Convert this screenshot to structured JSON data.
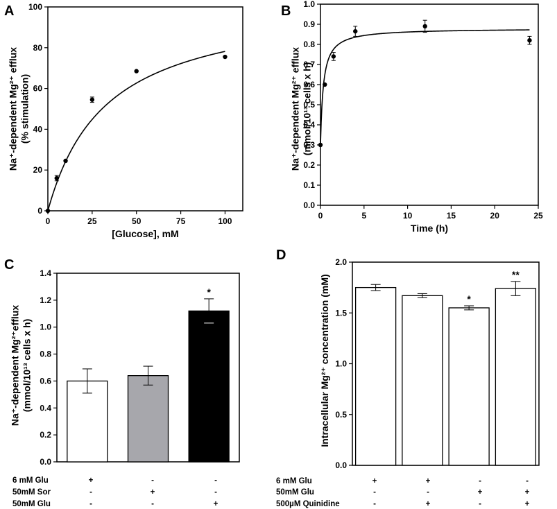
{
  "chart_data": [
    {
      "panel": "A",
      "type": "scatter",
      "x": [
        0,
        5,
        10,
        25,
        50,
        100
      ],
      "y": [
        0,
        16,
        24.5,
        54.5,
        68.5,
        75.5
      ],
      "yerr": [
        0,
        1.3,
        0,
        1.3,
        0,
        0
      ],
      "fit": {
        "model": "michaelis-menten",
        "vmax": 104,
        "km": 33
      },
      "xlabel": "[Glucose], mM",
      "ylabel_lines": [
        "Na⁺-dependent Mg²⁺ efflux",
        "(% stimulation)"
      ],
      "xlim": [
        0,
        110
      ],
      "ylim": [
        0,
        100
      ],
      "xticks": [
        0,
        25,
        50,
        75,
        100
      ],
      "yticks": [
        0,
        20,
        40,
        60,
        80,
        100
      ],
      "xticklabels": [
        "0",
        "25",
        "50",
        "75",
        "100"
      ],
      "yticklabels": [
        "0",
        "20",
        "40",
        "60",
        "80",
        "100"
      ]
    },
    {
      "panel": "B",
      "type": "scatter",
      "x": [
        0,
        0.5,
        1.5,
        4,
        12,
        24
      ],
      "y": [
        0.3,
        0.6,
        0.74,
        0.865,
        0.89,
        0.82
      ],
      "yerr": [
        0,
        0,
        0.02,
        0.025,
        0.03,
        0.02
      ],
      "fit": {
        "model": "saturation",
        "y0": 0.3,
        "ymax": 0.88,
        "k": 0.33
      },
      "xlabel": "Time (h)",
      "ylabel_lines": [
        "Na⁺-dependent Mg²⁺ efflux",
        "(mmol/10¹³ cells x h)"
      ],
      "xlim": [
        0,
        25
      ],
      "ylim": [
        0,
        1.0
      ],
      "xticks": [
        0,
        5,
        10,
        15,
        20,
        25
      ],
      "yticks": [
        0,
        0.1,
        0.2,
        0.3,
        0.4,
        0.5,
        0.6,
        0.7,
        0.8,
        0.9,
        1.0
      ],
      "xticklabels": [
        "0",
        "5",
        "10",
        "15",
        "20",
        "25"
      ],
      "yticklabels": [
        "0.0",
        "0.1",
        "0.2",
        "0.3",
        "0.4",
        "0.5",
        "0.6",
        "0.7",
        "0.8",
        "0.9",
        "1.0"
      ]
    },
    {
      "panel": "C",
      "type": "bar",
      "values": [
        0.6,
        0.64,
        1.12
      ],
      "errors": [
        0.09,
        0.07,
        0.09
      ],
      "colors": [
        "#ffffff",
        "#a7a7ac",
        "#000000"
      ],
      "annotations": [
        "",
        "",
        "*"
      ],
      "ylabel_lines": [
        "Na⁺-dependent Mg²⁺efflux",
        "(mmol/10¹³ cells x h)"
      ],
      "ylim": [
        0,
        1.4
      ],
      "yticks": [
        0,
        0.2,
        0.4,
        0.6,
        0.8,
        1.0,
        1.2,
        1.4
      ],
      "yticklabels": [
        "0.0",
        "0.2",
        "0.4",
        "0.6",
        "0.8",
        "1.0",
        "1.2",
        "1.4"
      ],
      "conditions": [
        {
          "label": "6 mM Glu",
          "marks": [
            "+",
            "-",
            "-"
          ]
        },
        {
          "label": "50mM Sor",
          "marks": [
            "-",
            "+",
            "-"
          ]
        },
        {
          "label": "50mM Glu",
          "marks": [
            "-",
            "-",
            "+"
          ]
        }
      ]
    },
    {
      "panel": "D",
      "type": "bar",
      "values": [
        1.75,
        1.67,
        1.55,
        1.74
      ],
      "errors": [
        0.03,
        0.02,
        0.02,
        0.07
      ],
      "colors": [
        "#ffffff",
        "#ffffff",
        "#ffffff",
        "#ffffff"
      ],
      "annotations": [
        "",
        "",
        "*",
        "**"
      ],
      "ylabel_lines": [
        "Intracellular Mg²⁺ concentration (mM)"
      ],
      "ylim": [
        0,
        2.0
      ],
      "yticks": [
        0,
        0.5,
        1.0,
        1.5,
        2.0
      ],
      "yticklabels": [
        "0.0",
        "0.5",
        "1.0",
        "1.5",
        "2.0"
      ],
      "conditions": [
        {
          "label": "6 mM Glu",
          "marks": [
            "+",
            "+",
            "-",
            "-"
          ]
        },
        {
          "label": "50mM Glu",
          "marks": [
            "-",
            "-",
            "+",
            "+"
          ]
        },
        {
          "label": "500µM Quinidine",
          "marks": [
            "-",
            "+",
            "-",
            "+"
          ]
        }
      ]
    }
  ]
}
